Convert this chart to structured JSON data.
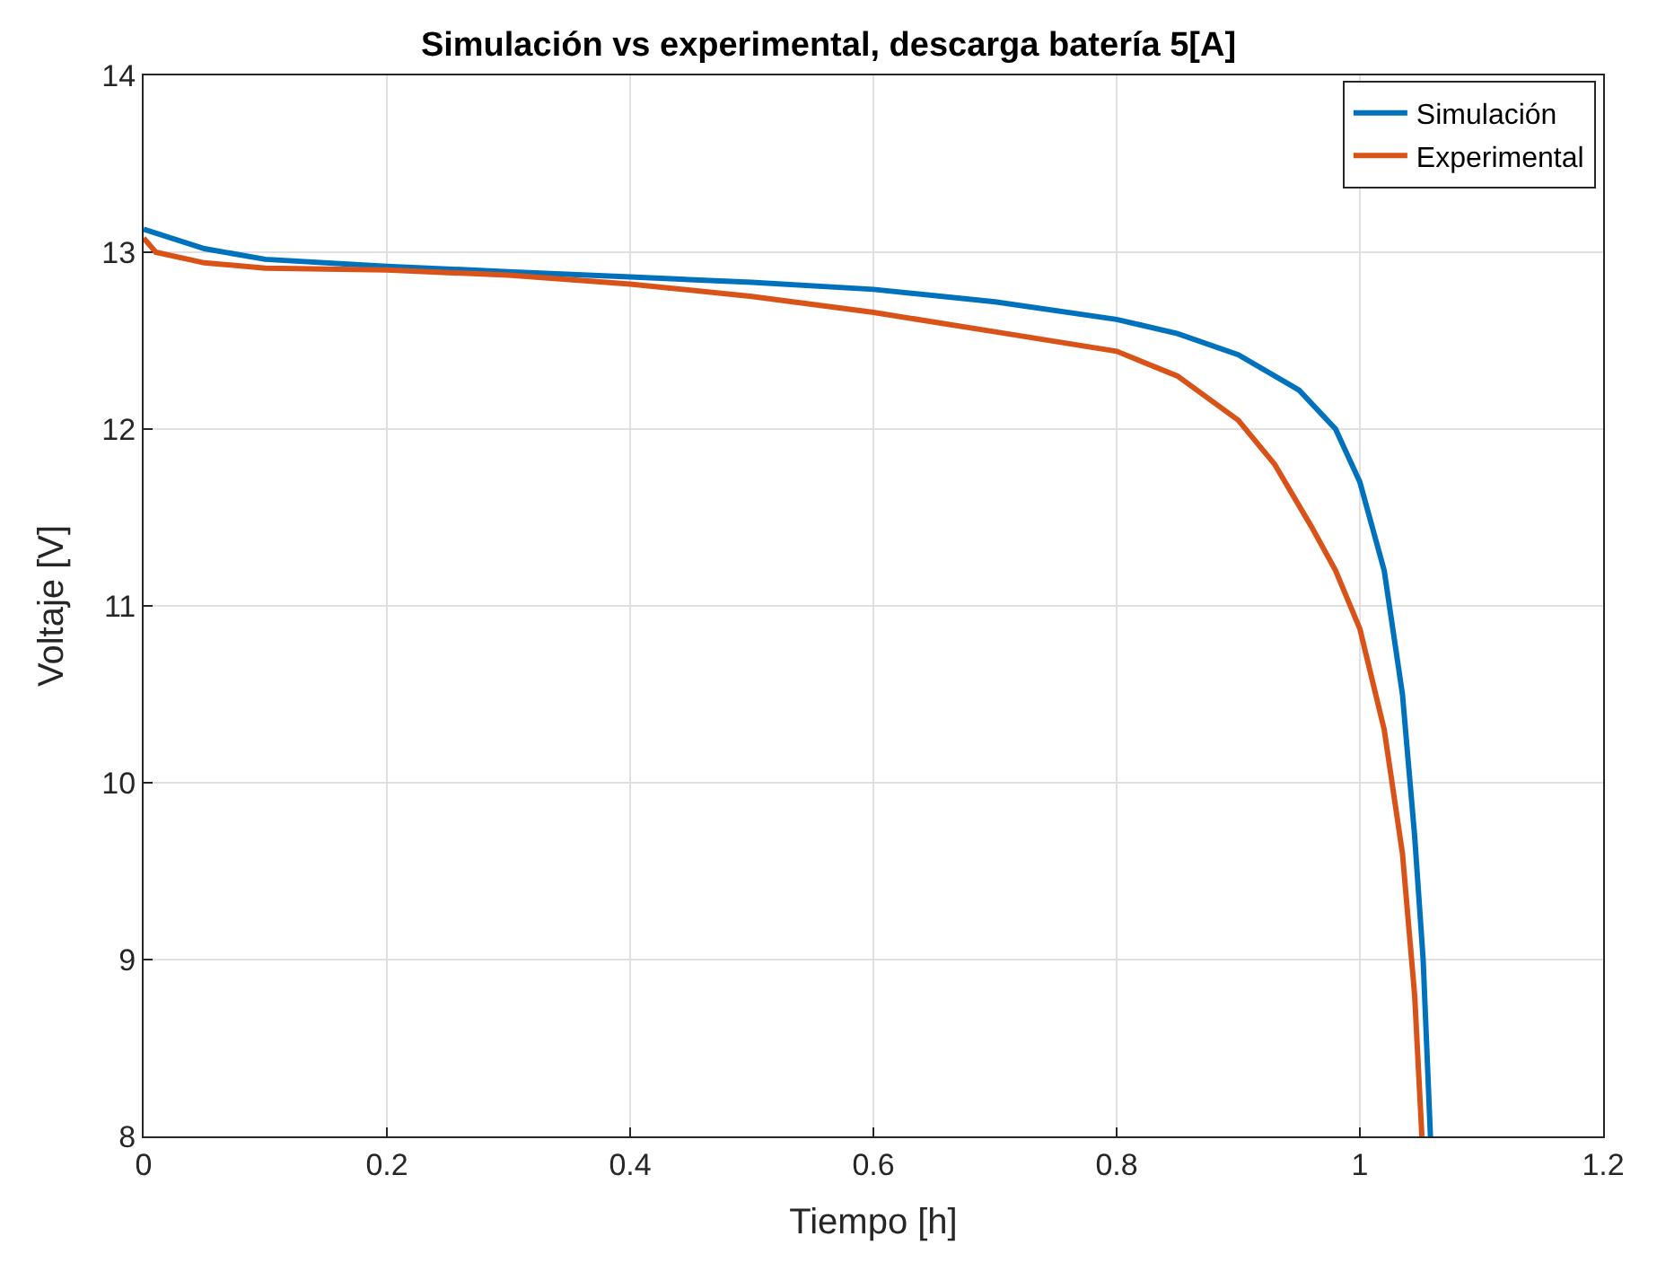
{
  "chart_data": {
    "type": "line",
    "title": "Simulación vs experimental, descarga batería 5[A]",
    "xlabel": "Tiempo [h]",
    "ylabel": "Voltaje [V]",
    "xlim": [
      0,
      1.2
    ],
    "xticks": [
      0,
      0.2,
      0.4,
      0.6,
      0.8,
      1,
      1.2
    ],
    "ylim": [
      8,
      14
    ],
    "yticks": [
      8,
      9,
      10,
      11,
      12,
      13,
      14
    ],
    "grid": true,
    "legend": "top right",
    "series": [
      {
        "name": "Simulación",
        "color": "#0072bd",
        "x": [
          0,
          0.05,
          0.1,
          0.2,
          0.3,
          0.4,
          0.5,
          0.6,
          0.7,
          0.8,
          0.85,
          0.9,
          0.95,
          0.98,
          1.0,
          1.02,
          1.035,
          1.045,
          1.052,
          1.058
        ],
        "values": [
          13.13,
          13.02,
          12.96,
          12.92,
          12.89,
          12.86,
          12.83,
          12.79,
          12.72,
          12.62,
          12.54,
          12.42,
          12.22,
          12.0,
          11.7,
          11.2,
          10.5,
          9.7,
          9.0,
          8.0
        ]
      },
      {
        "name": "Experimental",
        "color": "#d95319",
        "x": [
          0,
          0.01,
          0.05,
          0.1,
          0.2,
          0.3,
          0.4,
          0.5,
          0.6,
          0.7,
          0.8,
          0.85,
          0.9,
          0.93,
          0.96,
          0.98,
          1.0,
          1.02,
          1.035,
          1.045,
          1.051
        ],
        "values": [
          13.08,
          13.0,
          12.94,
          12.91,
          12.9,
          12.87,
          12.82,
          12.75,
          12.66,
          12.55,
          12.44,
          12.3,
          12.05,
          11.8,
          11.45,
          11.2,
          10.87,
          10.3,
          9.6,
          8.8,
          8.0
        ]
      }
    ]
  }
}
